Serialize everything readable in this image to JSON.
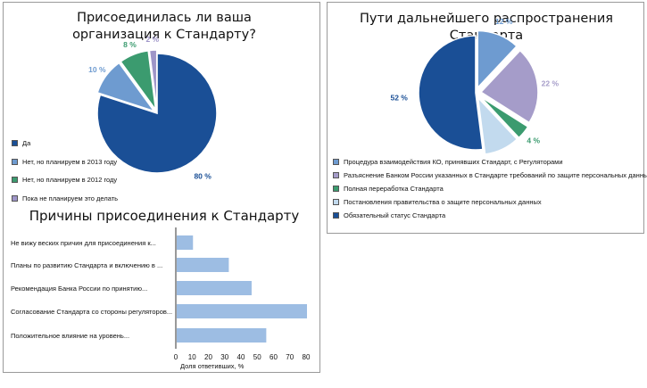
{
  "chart_data": [
    {
      "type": "pie",
      "title": "Присоединилась ли ваша организация к Стандарту?",
      "slices": [
        {
          "label": "Да",
          "value": 80,
          "value_label": "80 %",
          "color": "#1a4f96"
        },
        {
          "label": "Нет, но планируем в 2013 году",
          "value": 10,
          "value_label": "10 %",
          "color": "#6e9bd0"
        },
        {
          "label": "Нет, но планируем в 2012 году",
          "value": 8,
          "value_label": "8 %",
          "color": "#3b9b6f"
        },
        {
          "label": "Пока не планируем это делать",
          "value": 2,
          "value_label": "2 %",
          "color": "#9e95c8"
        }
      ],
      "legend_position": "bottom-left"
    },
    {
      "type": "bar",
      "orientation": "horizontal",
      "title": "Причины присоединения к Стандарту",
      "categories": [
        "Не вижу веских причин для присоединения к...",
        "Планы по развитию Стандарта и включению в ...",
        "Рекомендация Банка России по принятию...",
        "Согласование Стандарта со стороны регуляторов...",
        "Положительное влияние на уровень..."
      ],
      "values": [
        10,
        32,
        46,
        80,
        55
      ],
      "xlabel": "Доля ответивших, %",
      "ticks": [
        "0",
        "10",
        "20",
        "30",
        "40",
        "50",
        "60",
        "70",
        "80"
      ],
      "xlim": [
        0,
        80
      ],
      "grid": false,
      "color": "#9dbde3"
    },
    {
      "type": "pie",
      "title": "Пути дальнейшего распространения Стандарта",
      "slices": [
        {
          "label": "Процедура взаимодействия КО, принявших Стандарт, с Регуляторами",
          "value": 12,
          "value_label": "12 %",
          "color": "#6e9bd0"
        },
        {
          "label": "Разъяснение Банком России указанных в Стандарте требований по защите персональных данных",
          "value": 22,
          "value_label": "22 %",
          "color": "#a59cc9"
        },
        {
          "label": "Полная переработка Стандарта",
          "value": 4,
          "value_label": "4 %",
          "color": "#3b9b6f"
        },
        {
          "label": "Постановления правительства о защите персональных данных",
          "value": 10,
          "value_label": "10 %",
          "color": "#c2daee"
        },
        {
          "label": "Обязательный статус Стандарта",
          "value": 52,
          "value_label": "52 %",
          "color": "#1a4f96"
        }
      ],
      "legend_position": "bottom"
    }
  ]
}
